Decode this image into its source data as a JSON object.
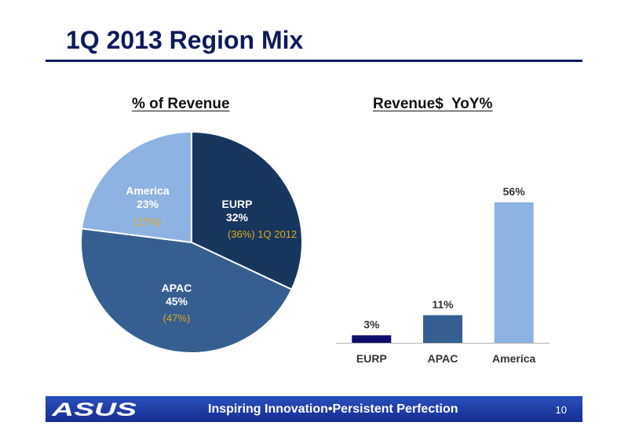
{
  "slide": {
    "title": "1Q 2013 Region Mix",
    "page_number": "10"
  },
  "footer": {
    "logo_text": "ASUS",
    "tagline": "Inspiring Innovation•Persistent Perfection"
  },
  "colors": {
    "title": "#0d1a5c",
    "eurp": "#17375e",
    "apac": "#355f91",
    "america": "#8db3e2",
    "prior_label": "#e3a21a"
  },
  "chart_data": [
    {
      "type": "pie",
      "title": "% of Revenue",
      "slices": [
        {
          "name": "EURP",
          "value": 32,
          "value_label": "32%",
          "prior_label": "(36%) 1Q 2012"
        },
        {
          "name": "APAC",
          "value": 45,
          "value_label": "45%",
          "prior_label": "(47%)"
        },
        {
          "name": "America",
          "value": 23,
          "value_label": "23%",
          "prior_label": "(17%)"
        }
      ]
    },
    {
      "type": "bar",
      "title": "Revenue$  YoY%",
      "categories": [
        "EURP",
        "APAC",
        "America"
      ],
      "values": [
        3,
        11,
        56
      ],
      "data_labels": [
        "3%",
        "11%",
        "56%"
      ],
      "grid": false
    }
  ]
}
